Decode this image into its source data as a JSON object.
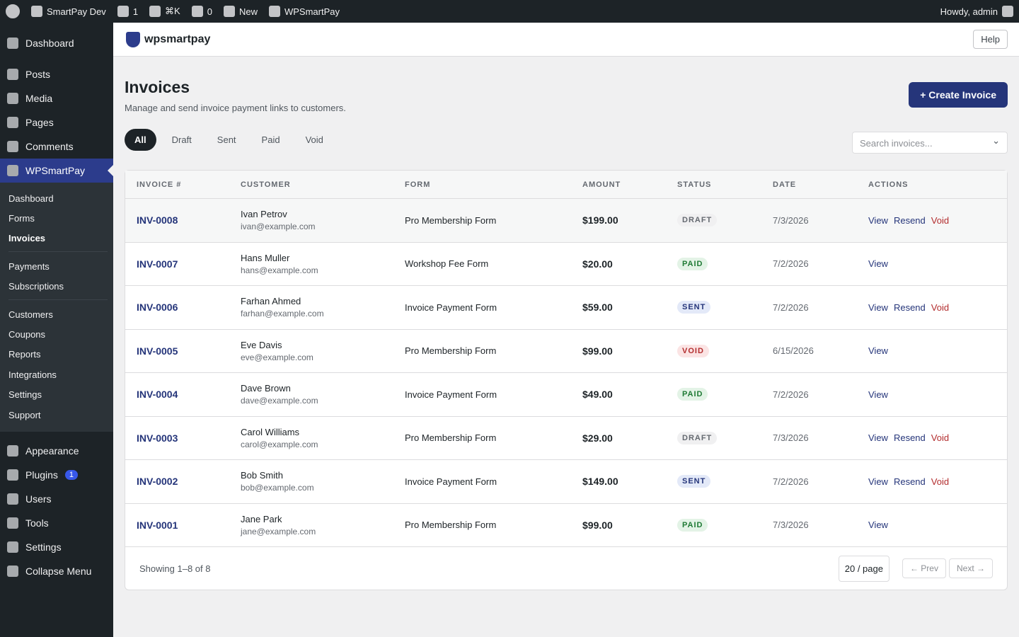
{
  "admin_bar": {
    "site": "SmartPay Dev",
    "updates": "1",
    "search": "⌘K",
    "comments": "0",
    "new": "New",
    "plugin": "WPSmartPay",
    "greeting": "Howdy, admin"
  },
  "sidebar": {
    "top": [
      "Dashboard"
    ],
    "main": [
      "Posts",
      "Media",
      "Pages",
      "Comments"
    ],
    "active": "WPSmartPay",
    "submenu": [
      [
        "Dashboard",
        "Forms",
        "Invoices"
      ],
      [
        "Payments",
        "Subscriptions"
      ],
      [
        "Customers",
        "Coupons",
        "Reports",
        "Integrations",
        "Settings",
        "Support"
      ]
    ],
    "current": "Invoices",
    "bottom": [
      "Appearance",
      "Plugins",
      "Users",
      "Tools",
      "Settings",
      "Collapse Menu"
    ],
    "plugins_badge": "1"
  },
  "header": {
    "logo": "wpsmartpay",
    "help": "Help"
  },
  "page": {
    "title": "Invoices",
    "subtitle": "Manage and send invoice payment links to customers.",
    "create_button": "+ Create Invoice",
    "tabs": [
      "All",
      "Draft",
      "Sent",
      "Paid",
      "Void"
    ],
    "active_tab": "All",
    "search_placeholder": "Search invoices..."
  },
  "table": {
    "columns": [
      "INVOICE #",
      "CUSTOMER",
      "FORM",
      "AMOUNT",
      "STATUS",
      "DATE",
      "ACTIONS"
    ],
    "rows": [
      {
        "invoice": "INV-0008",
        "customer": "Ivan Petrov",
        "email": "ivan@example.com",
        "form": "Pro Membership Form",
        "amount": "$199.00",
        "status": "DRAFT",
        "date": "7/3/2026",
        "actions": [
          "View",
          "Resend",
          "Void"
        ]
      },
      {
        "invoice": "INV-0007",
        "customer": "Hans Muller",
        "email": "hans@example.com",
        "form": "Workshop Fee Form",
        "amount": "$20.00",
        "status": "PAID",
        "date": "7/2/2026",
        "actions": [
          "View"
        ]
      },
      {
        "invoice": "INV-0006",
        "customer": "Farhan Ahmed",
        "email": "farhan@example.com",
        "form": "Invoice Payment Form",
        "amount": "$59.00",
        "status": "SENT",
        "date": "7/2/2026",
        "actions": [
          "View",
          "Resend",
          "Void"
        ]
      },
      {
        "invoice": "INV-0005",
        "customer": "Eve Davis",
        "email": "eve@example.com",
        "form": "Pro Membership Form",
        "amount": "$99.00",
        "status": "VOID",
        "date": "6/15/2026",
        "actions": [
          "View"
        ]
      },
      {
        "invoice": "INV-0004",
        "customer": "Dave Brown",
        "email": "dave@example.com",
        "form": "Invoice Payment Form",
        "amount": "$49.00",
        "status": "PAID",
        "date": "7/2/2026",
        "actions": [
          "View"
        ]
      },
      {
        "invoice": "INV-0003",
        "customer": "Carol Williams",
        "email": "carol@example.com",
        "form": "Pro Membership Form",
        "amount": "$29.00",
        "status": "DRAFT",
        "date": "7/3/2026",
        "actions": [
          "View",
          "Resend",
          "Void"
        ]
      },
      {
        "invoice": "INV-0002",
        "customer": "Bob Smith",
        "email": "bob@example.com",
        "form": "Invoice Payment Form",
        "amount": "$149.00",
        "status": "SENT",
        "date": "7/2/2026",
        "actions": [
          "View",
          "Resend",
          "Void"
        ]
      },
      {
        "invoice": "INV-0001",
        "customer": "Jane Park",
        "email": "jane@example.com",
        "form": "Pro Membership Form",
        "amount": "$99.00",
        "status": "PAID",
        "date": "7/3/2026",
        "actions": [
          "View"
        ]
      }
    ]
  },
  "footer": {
    "showing": "Showing 1–8 of 8",
    "per_page": "20 / page",
    "prev": "← Prev",
    "next": "Next →"
  }
}
